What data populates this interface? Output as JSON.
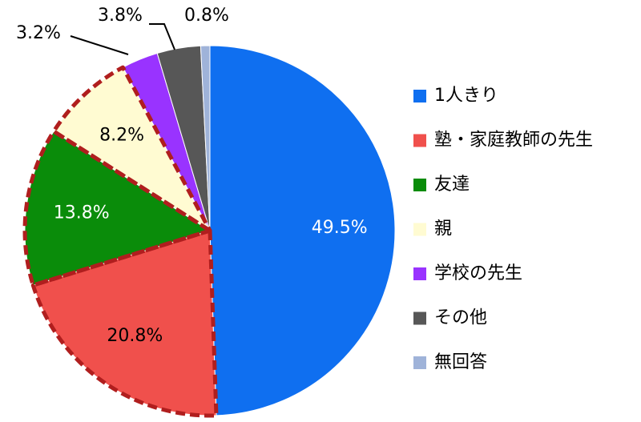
{
  "chart_data": {
    "type": "pie",
    "categories": [
      "1人きり",
      "塾・家庭教師の先生",
      "友達",
      "親",
      "学校の先生",
      "その他",
      "無回答"
    ],
    "values": [
      49.5,
      20.8,
      13.8,
      8.2,
      3.2,
      3.8,
      0.8
    ],
    "value_labels": [
      "49.5%",
      "20.8%",
      "13.8%",
      "8.2%",
      "3.2%",
      "3.8%",
      "0.8%"
    ],
    "colors": [
      "#0f6ff0",
      "#f0504c",
      "#0a8c0a",
      "#fffbd2",
      "#9933ff",
      "#575757",
      "#9fb3d9"
    ],
    "label_colors": [
      "#ffffff",
      "#000000",
      "#ffffff",
      "#000000",
      "#000000",
      "#000000",
      "#000000"
    ],
    "outlined": [
      false,
      true,
      true,
      true,
      false,
      false,
      false
    ],
    "outline_color": "#b01e1e",
    "legend": "right"
  }
}
